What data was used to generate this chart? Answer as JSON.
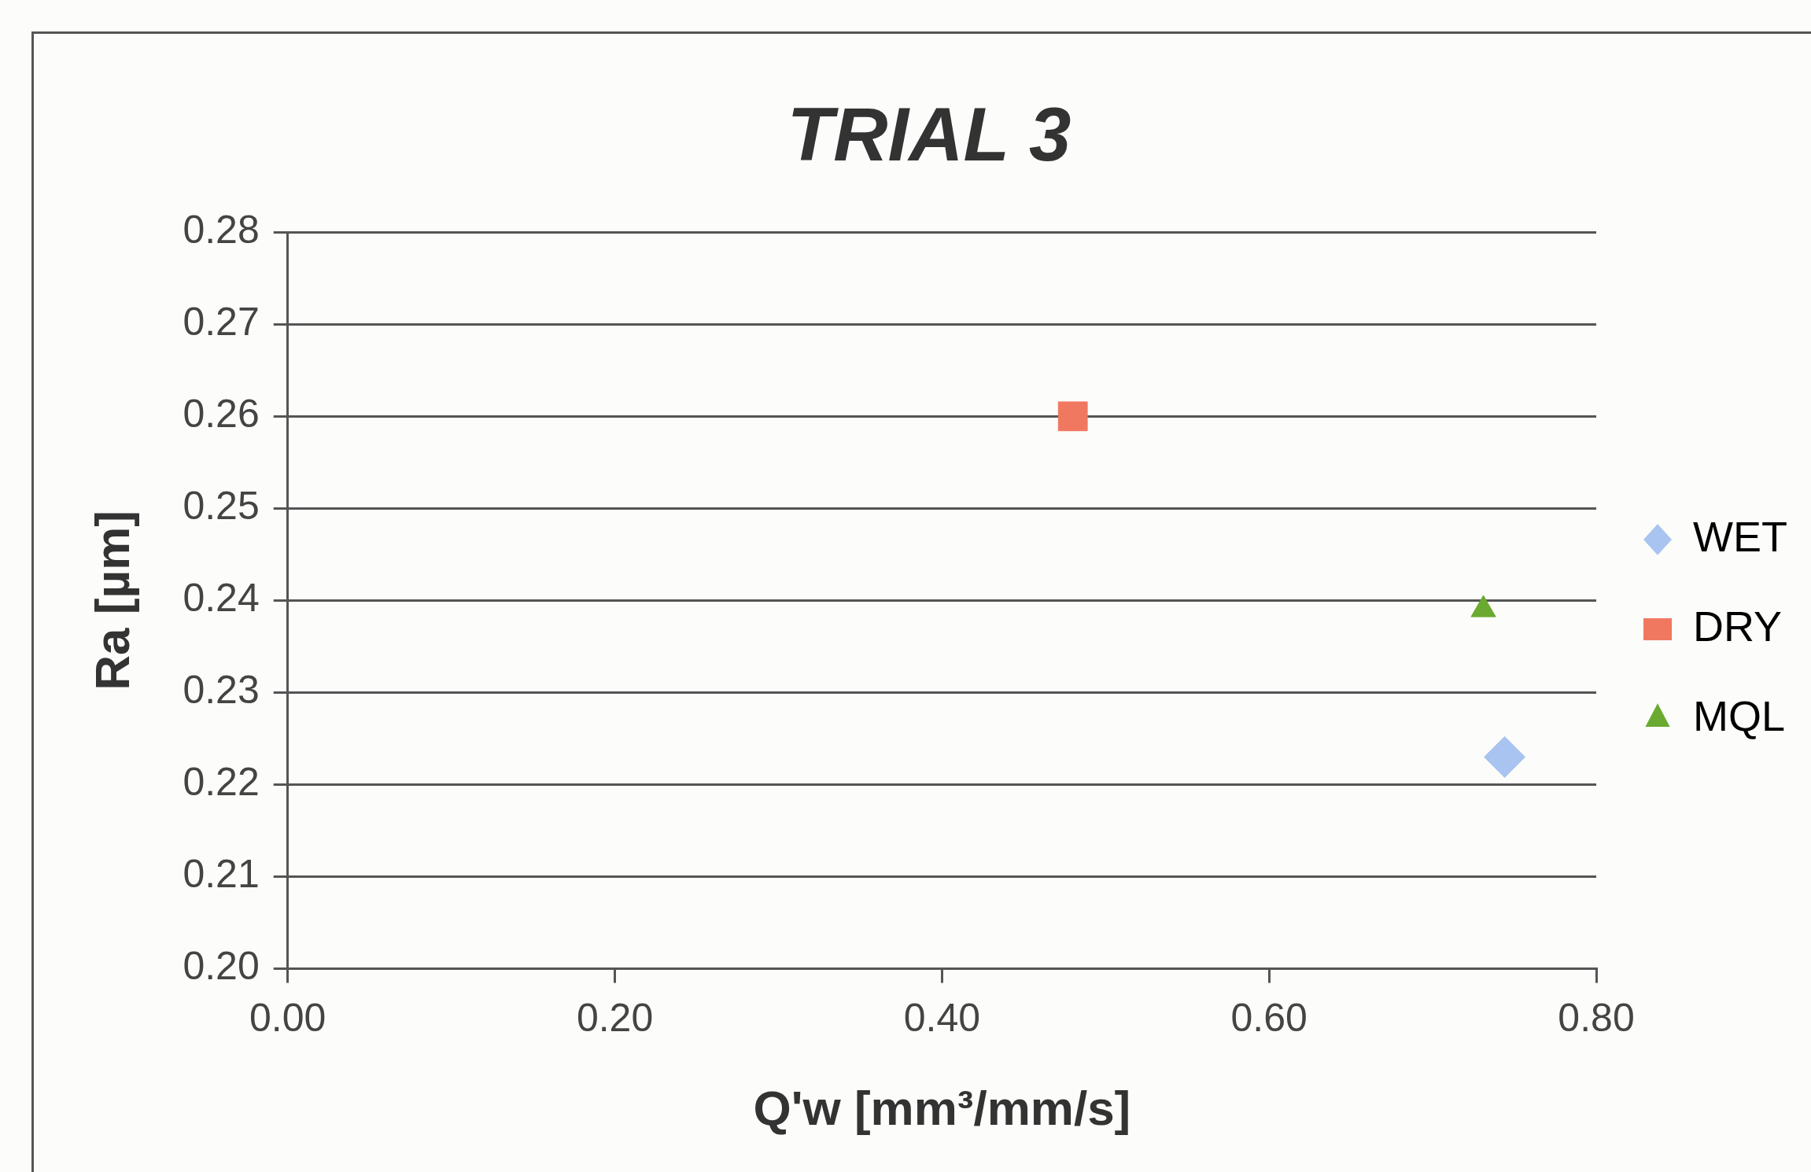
{
  "chart_data": {
    "type": "scatter",
    "title": "TRIAL 3",
    "xlabel": "Q'w [mm³/mm/s]",
    "ylabel": "Ra [µm]",
    "xlim": [
      0,
      0.8
    ],
    "xticks": [
      {
        "value": 0,
        "label": "0.00"
      },
      {
        "value": 0.2,
        "label": "0.20"
      },
      {
        "value": 0.4,
        "label": "0.40"
      },
      {
        "value": 0.6,
        "label": "0.60"
      },
      {
        "value": 0.8,
        "label": "0.80"
      }
    ],
    "ylim": [
      0.2,
      0.28
    ],
    "yticks": [
      {
        "value": 0.2,
        "label": "0.20"
      },
      {
        "value": 0.21,
        "label": "0.21"
      },
      {
        "value": 0.22,
        "label": "0.22"
      },
      {
        "value": 0.23,
        "label": "0.23"
      },
      {
        "value": 0.24,
        "label": "0.24"
      },
      {
        "value": 0.25,
        "label": "0.25"
      },
      {
        "value": 0.26,
        "label": "0.26"
      },
      {
        "value": 0.27,
        "label": "0.27"
      },
      {
        "value": 0.28,
        "label": "0.28"
      }
    ],
    "grid": "y",
    "legend": "right",
    "series": [
      {
        "name": "WET",
        "color": "#a9c4f0",
        "marker": "diamond",
        "x": [
          0.744
        ],
        "values": [
          0.223
        ]
      },
      {
        "name": "DRY",
        "color": "#f07860",
        "marker": "square",
        "x": [
          0.48
        ],
        "values": [
          0.26
        ]
      },
      {
        "name": "MQL",
        "color": "#6aaa30",
        "marker": "triangle",
        "x": [
          0.731
        ],
        "values": [
          0.239
        ]
      }
    ]
  }
}
